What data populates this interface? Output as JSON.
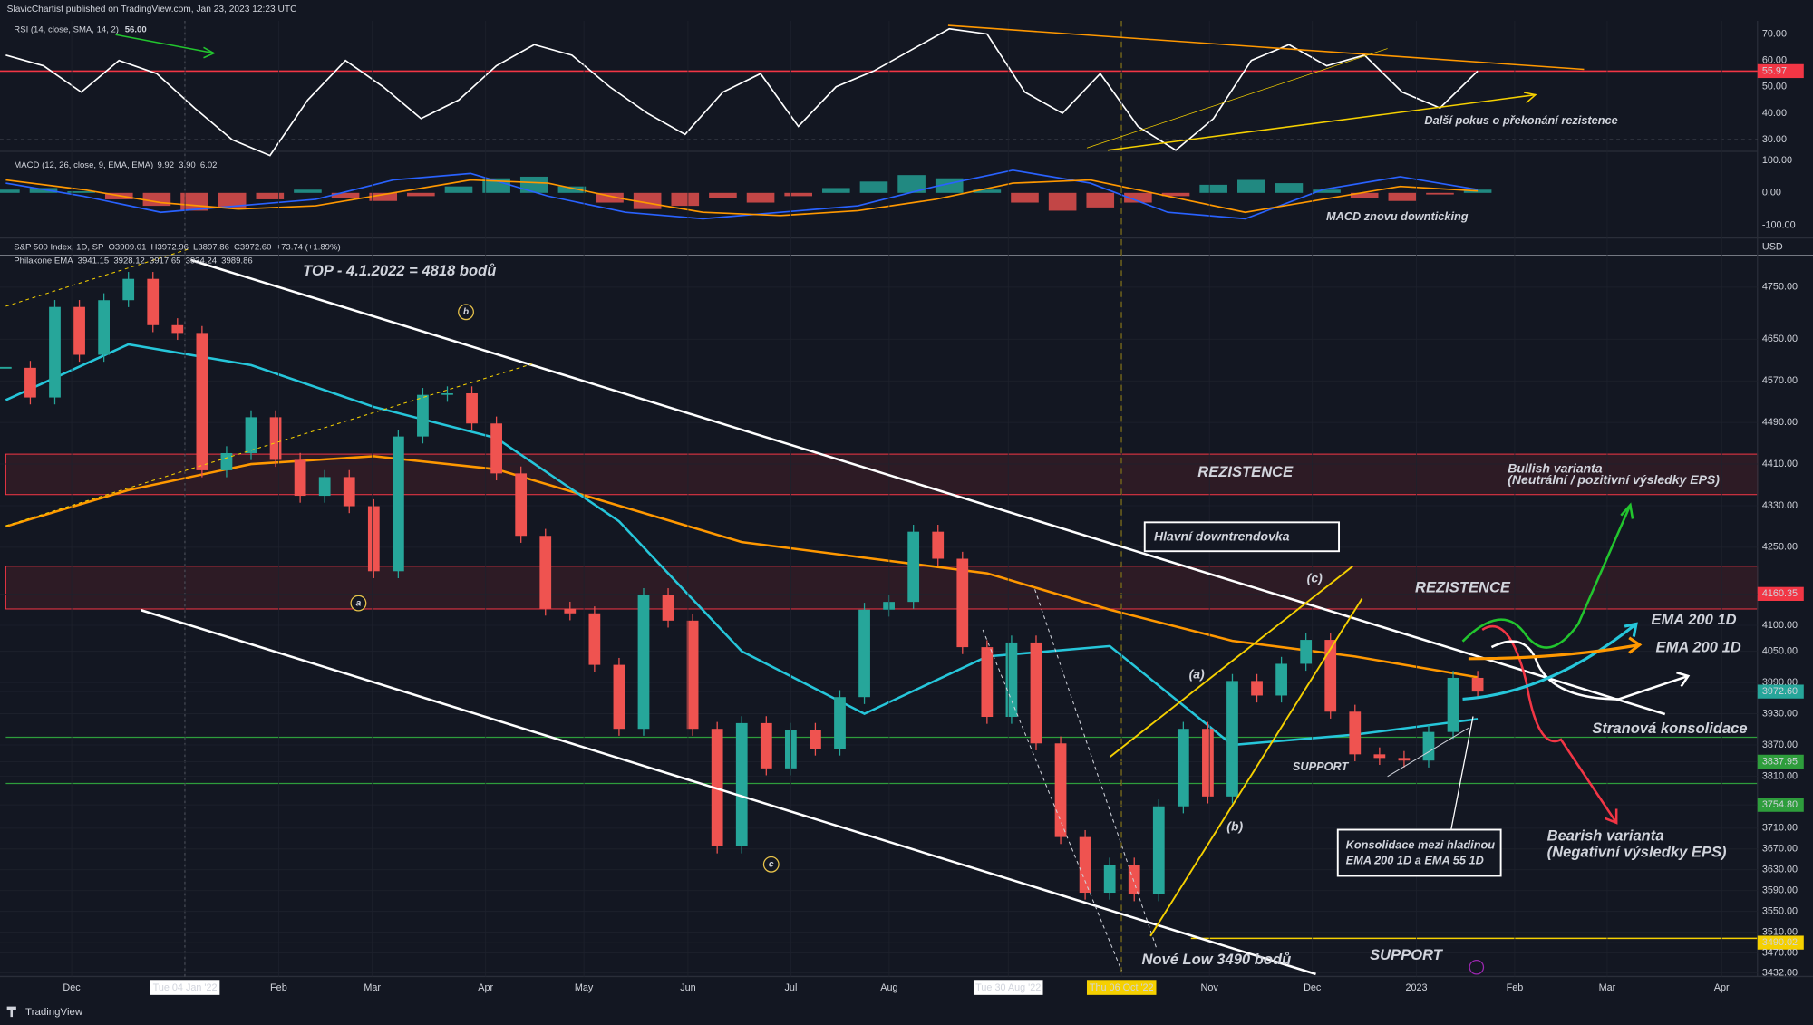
{
  "header": "SlavicChartist published on TradingView.com, Jan 23, 2023 12:23 UTC",
  "rsi": {
    "legend": "RSI (14, close, SMA, 14, 2)",
    "legend_value": "56.00",
    "ylim": [
      26,
      75
    ],
    "ticks": [
      {
        "value": 70,
        "label": "70.00"
      },
      {
        "value": 60,
        "label": "60.00"
      },
      {
        "value": 50,
        "label": "50.00"
      },
      {
        "value": 40,
        "label": "40.00"
      },
      {
        "value": 30,
        "label": "30.00"
      }
    ],
    "level": {
      "value": 55.97,
      "label": "55.97",
      "color": "#f23645"
    },
    "color": "#ffffff",
    "values": [
      62,
      58,
      48,
      60,
      55,
      42,
      30,
      24,
      45,
      60,
      50,
      38,
      45,
      58,
      66,
      62,
      50,
      40,
      32,
      48,
      55,
      35,
      50,
      56,
      64,
      72,
      70,
      48,
      40,
      55,
      35,
      26,
      38,
      60,
      66,
      58,
      62,
      48,
      42,
      56
    ],
    "annotation": "Další pokus o překonání rezistence"
  },
  "macd": {
    "legend": "MACD (12, 26, close, 9, EMA, EMA)",
    "legend_values": [
      "9.92",
      "3.90",
      "6.02"
    ],
    "ylim": [
      -136,
      121
    ],
    "ticks": [
      {
        "value": 100,
        "label": "100.00"
      },
      {
        "value": 0,
        "label": "0.00"
      },
      {
        "value": -100,
        "label": "-100.00"
      }
    ],
    "histogram": [
      10,
      15,
      5,
      -20,
      -40,
      -55,
      -45,
      -20,
      10,
      -15,
      -25,
      -10,
      20,
      45,
      50,
      20,
      -30,
      -50,
      -40,
      -15,
      -30,
      -10,
      15,
      35,
      55,
      45,
      10,
      -30,
      -55,
      -45,
      -30,
      -10,
      25,
      40,
      30,
      10,
      -15,
      -25,
      -5,
      10
    ],
    "macd_line": {
      "color": "#2962ff",
      "values": [
        30,
        -10,
        -60,
        -40,
        -20,
        40,
        60,
        -10,
        -60,
        -80,
        -60,
        -40,
        20,
        70,
        30,
        -60,
        -80,
        10,
        50,
        10
      ]
    },
    "signal_line": {
      "color": "#ff9800",
      "values": [
        40,
        10,
        -30,
        -50,
        -40,
        0,
        40,
        30,
        -20,
        -60,
        -70,
        -55,
        -20,
        30,
        40,
        -10,
        -60,
        -20,
        20,
        6
      ]
    },
    "annotation": "MACD znovu downticking"
  },
  "main": {
    "legend": [
      "S&P 500 Index, 1D, SP",
      "O3909.01",
      "H3972.96",
      "L3897.86",
      "C3972.60",
      "+73.74 (+1.89%)"
    ],
    "legend2": [
      "Philakone EMA",
      "3941.15",
      "3928.12",
      "3917.65",
      "3934.24",
      "3989.86"
    ],
    "currency": "USD",
    "ylim": [
      3425,
      4840
    ],
    "ticks": [
      {
        "value": 4750,
        "label": "4750.00"
      },
      {
        "value": 4650,
        "label": "4650.00"
      },
      {
        "value": 4570,
        "label": "4570.00"
      },
      {
        "value": 4490,
        "label": "4490.00"
      },
      {
        "value": 4410,
        "label": "4410.00"
      },
      {
        "value": 4330,
        "label": "4330.00"
      },
      {
        "value": 4250,
        "label": "4250.00"
      },
      {
        "value": 4160.35,
        "label": "4160.35",
        "color": "#f23645"
      },
      {
        "value": 4100,
        "label": "4100.00"
      },
      {
        "value": 4050,
        "label": "4050.00"
      },
      {
        "value": 3990,
        "label": "3990.00"
      },
      {
        "value": 3972.6,
        "label": "3972.60",
        "color": "#26a69a"
      },
      {
        "value": 3930,
        "label": "3930.00"
      },
      {
        "value": 3870,
        "label": "3870.00"
      },
      {
        "value": 3837.95,
        "label": "3837.95",
        "color": "#2e9d3c"
      },
      {
        "value": 3810,
        "label": "3810.00"
      },
      {
        "value": 3754.8,
        "label": "3754.80",
        "color": "#2e9d3c"
      },
      {
        "value": 3710,
        "label": "3710.00"
      },
      {
        "value": 3670,
        "label": "3670.00"
      },
      {
        "value": 3630,
        "label": "3630.00"
      },
      {
        "value": 3590,
        "label": "3590.00"
      },
      {
        "value": 3550,
        "label": "3550.00"
      },
      {
        "value": 3510,
        "label": "3510.00"
      },
      {
        "value": 3490.02,
        "label": "3490.02",
        "color": "#f5d000"
      },
      {
        "value": 3470,
        "label": "3470.00"
      },
      {
        "value": 3432,
        "label": "3432.00"
      }
    ],
    "closes": [
      4595,
      4538,
      4712,
      4620,
      4725,
      4766,
      4677,
      4662,
      4398,
      4431,
      4500,
      4418,
      4349,
      4385,
      4329,
      4204,
      4463,
      4543,
      4546,
      4488,
      4392,
      4272,
      4132,
      4123,
      4024,
      3901,
      4158,
      4109,
      3901,
      3675,
      3912,
      3825,
      3899,
      3863,
      3962,
      4130,
      4145,
      4280,
      4228,
      4058,
      3924,
      4067,
      3873,
      3693,
      3586,
      3640,
      3583,
      3752,
      3901,
      3771,
      3993,
      3965,
      4026,
      4072,
      3934,
      3852,
      3845,
      3840,
      3895,
      3999,
      3972.6
    ],
    "ema200": {
      "color": "#ff9800",
      "values": [
        4290,
        4360,
        4410,
        4425,
        4400,
        4330,
        4260,
        4230,
        4200,
        4130,
        4070,
        4040,
        4000
      ]
    },
    "ema55": {
      "color": "#26c6da",
      "values": [
        4533,
        4640,
        4600,
        4520,
        4460,
        4300,
        4050,
        3930,
        4040,
        4060,
        3870,
        3890,
        3920
      ]
    },
    "annotations": {
      "top": "TOP - 4.1.2022 = 4818 bodů",
      "circle_b": "b",
      "circle_a": "a",
      "circle_c": "c",
      "wave_a": "(a)",
      "wave_b": "(b)",
      "wave_c": "(c)",
      "rez1": "REZISTENCE",
      "rez2": "REZISTENCE",
      "downtrend": "Hlavní downtrendovka",
      "support1": "SUPPORT",
      "support2": "SUPPORT",
      "new_low": "Nové Low 3490 bodů",
      "bullish": "Bullish varianta",
      "bullish_sub": "(Neutrální / pozitivní výsledky EPS)",
      "ema200_orange": "EMA 200 1D",
      "ema200_cyan": "EMA 200 1D",
      "sideways": "Stranová konsolidace",
      "cons1": "Konsolidace mezi hladinou",
      "cons2": "EMA 200 1D a EMA 55 1D",
      "bearish": "Bearish varianta",
      "bearish_sub": "(Negativní výsledky EPS)"
    }
  },
  "time_axis": [
    {
      "label": "Dec"
    },
    {
      "label": "Tue 04 Jan '22",
      "color": "#ffffff"
    },
    {
      "label": "Feb"
    },
    {
      "label": "Mar"
    },
    {
      "label": "Apr"
    },
    {
      "label": "May"
    },
    {
      "label": "Jun"
    },
    {
      "label": "Jul"
    },
    {
      "label": "Aug"
    },
    {
      "label": "Tue 30 Aug '22",
      "color": "#ffffff"
    },
    {
      "label": "Thu 06 Oct '22",
      "color": "#f5d000"
    },
    {
      "label": "Nov"
    },
    {
      "label": "Dec"
    },
    {
      "label": "2023"
    },
    {
      "label": "Feb"
    },
    {
      "label": "Mar"
    },
    {
      "label": "Apr"
    }
  ],
  "footer": "TradingView"
}
